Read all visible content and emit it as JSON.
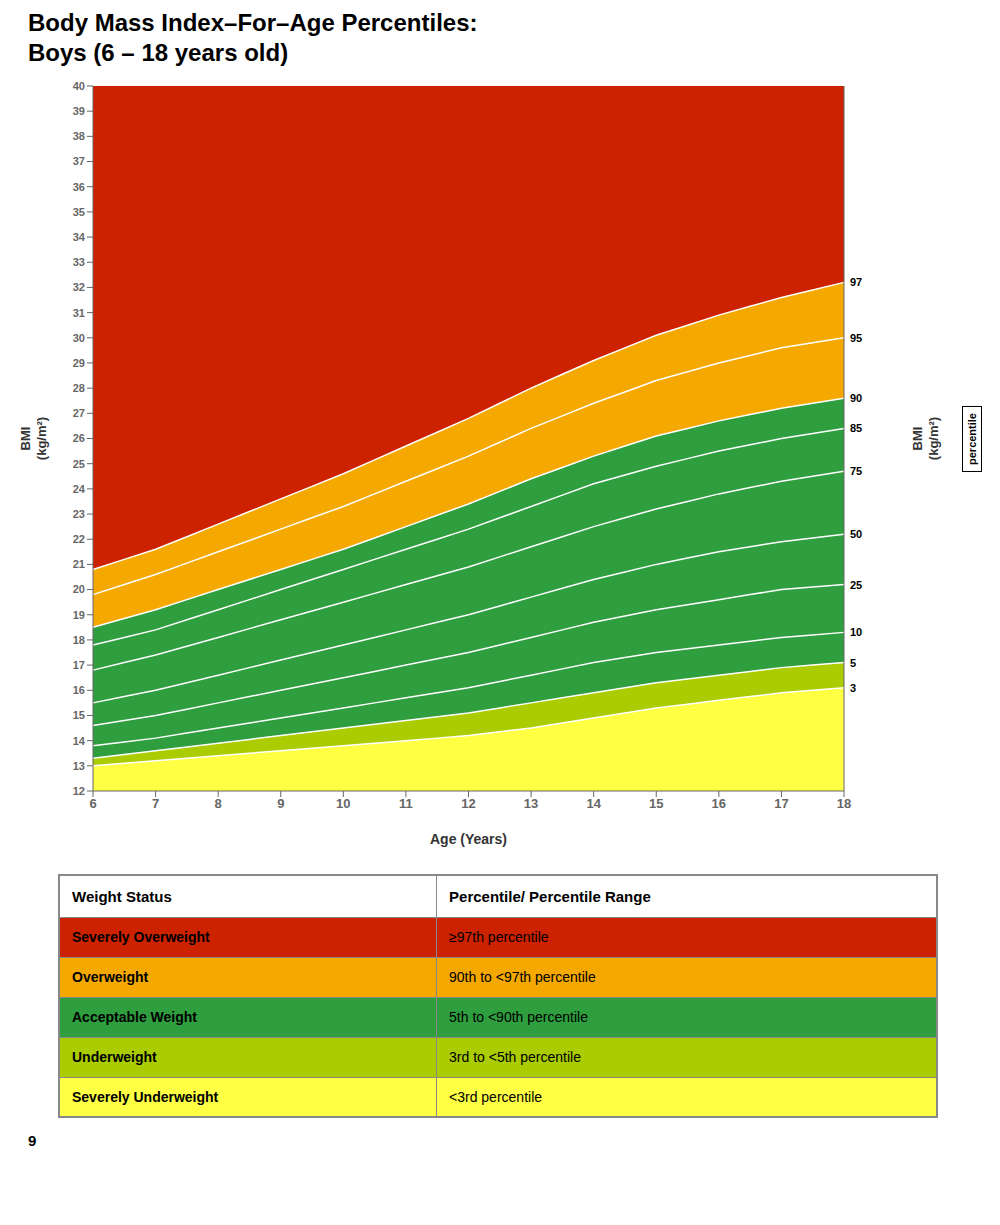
{
  "chart_data": [
    {
      "type": "area",
      "title": "Body Mass Index–For–Age Percentiles:",
      "subtitle": "Boys (6 – 18 years old)",
      "x_label": "Age (Years)",
      "y_label": "BMI\n(kg/m²)",
      "y2_label": "BMI\n(kg/m²)",
      "x": [
        6,
        6.5,
        7,
        7.5,
        8,
        8.5,
        9,
        9.5,
        10,
        10.5,
        11,
        11.5,
        12,
        12.5,
        13,
        13.5,
        14,
        14.5,
        15,
        15.5,
        16,
        16.5,
        17,
        17.5,
        18
      ],
      "series": [
        {
          "name": "3",
          "color": "#FFFFFF",
          "values": [
            13.0,
            13.1,
            13.2,
            13.3,
            13.4,
            13.5,
            13.6,
            13.7,
            13.8,
            13.9,
            14.0,
            14.1,
            14.2,
            14.35,
            14.5,
            14.7,
            14.9,
            15.1,
            15.3,
            15.45,
            15.6,
            15.75,
            15.9,
            16.0,
            16.1
          ]
        },
        {
          "name": "5",
          "color": "#FFFFFF",
          "values": [
            13.3,
            13.45,
            13.6,
            13.75,
            13.9,
            14.05,
            14.2,
            14.35,
            14.5,
            14.65,
            14.8,
            14.95,
            15.1,
            15.3,
            15.5,
            15.7,
            15.9,
            16.1,
            16.3,
            16.45,
            16.6,
            16.75,
            16.9,
            17.0,
            17.1
          ]
        },
        {
          "name": "10",
          "color": "#FFFFFF",
          "values": [
            13.8,
            13.95,
            14.1,
            14.3,
            14.5,
            14.7,
            14.9,
            15.1,
            15.3,
            15.5,
            15.7,
            15.9,
            16.1,
            16.35,
            16.6,
            16.85,
            17.1,
            17.3,
            17.5,
            17.65,
            17.8,
            17.95,
            18.1,
            18.2,
            18.3
          ]
        },
        {
          "name": "25",
          "color": "#FFFFFF",
          "values": [
            14.6,
            14.8,
            15.0,
            15.25,
            15.5,
            15.75,
            16.0,
            16.25,
            16.5,
            16.75,
            17.0,
            17.25,
            17.5,
            17.8,
            18.1,
            18.4,
            18.7,
            18.95,
            19.2,
            19.4,
            19.6,
            19.8,
            20.0,
            20.1,
            20.2
          ]
        },
        {
          "name": "50",
          "color": "#FFFFFF",
          "values": [
            15.5,
            15.75,
            16.0,
            16.3,
            16.6,
            16.9,
            17.2,
            17.5,
            17.8,
            18.1,
            18.4,
            18.7,
            19.0,
            19.35,
            19.7,
            20.05,
            20.4,
            20.7,
            21.0,
            21.25,
            21.5,
            21.7,
            21.9,
            22.05,
            22.2
          ]
        },
        {
          "name": "75",
          "color": "#FFFFFF",
          "values": [
            16.8,
            17.1,
            17.4,
            17.75,
            18.1,
            18.45,
            18.8,
            19.15,
            19.5,
            19.85,
            20.2,
            20.55,
            20.9,
            21.3,
            21.7,
            22.1,
            22.5,
            22.85,
            23.2,
            23.5,
            23.8,
            24.05,
            24.3,
            24.5,
            24.7
          ]
        },
        {
          "name": "85",
          "color": "#FFFFFF",
          "values": [
            17.8,
            18.1,
            18.4,
            18.8,
            19.2,
            19.6,
            20.0,
            20.4,
            20.8,
            21.2,
            21.6,
            22.0,
            22.4,
            22.85,
            23.3,
            23.75,
            24.2,
            24.55,
            24.9,
            25.2,
            25.5,
            25.75,
            26.0,
            26.2,
            26.4
          ]
        },
        {
          "name": "90",
          "color": "#FFFFFF",
          "values": [
            18.5,
            18.85,
            19.2,
            19.6,
            20.0,
            20.4,
            20.8,
            21.2,
            21.6,
            22.05,
            22.5,
            22.95,
            23.4,
            23.9,
            24.4,
            24.85,
            25.3,
            25.7,
            26.1,
            26.4,
            26.7,
            26.95,
            27.2,
            27.4,
            27.6
          ]
        },
        {
          "name": "95",
          "color": "#FFFFFF",
          "values": [
            19.8,
            20.2,
            20.6,
            21.05,
            21.5,
            21.95,
            22.4,
            22.85,
            23.3,
            23.8,
            24.3,
            24.8,
            25.3,
            25.85,
            26.4,
            26.9,
            27.4,
            27.85,
            28.3,
            28.65,
            29.0,
            29.3,
            29.6,
            29.8,
            30.0
          ]
        },
        {
          "name": "97",
          "color": "#FFFFFF",
          "values": [
            20.8,
            21.2,
            21.6,
            22.1,
            22.6,
            23.1,
            23.6,
            24.1,
            24.6,
            25.15,
            25.7,
            26.25,
            26.8,
            27.4,
            28.0,
            28.55,
            29.1,
            29.6,
            30.1,
            30.5,
            30.9,
            31.25,
            31.6,
            31.9,
            32.2
          ]
        }
      ],
      "bands": [
        {
          "from": "97",
          "to": null,
          "color": "#CC2200"
        },
        {
          "from": "90",
          "to": "97",
          "color": "#F5A800"
        },
        {
          "from": "5",
          "to": "90",
          "color": "#2E9E3E"
        },
        {
          "from": "3",
          "to": "5",
          "color": "#AACC00"
        },
        {
          "from": null,
          "to": "3",
          "color": "#FFFF44"
        }
      ],
      "xlim": [
        6,
        18
      ],
      "xticks": [
        6,
        7,
        8,
        9,
        10,
        11,
        12,
        13,
        14,
        15,
        16,
        17,
        18
      ],
      "ylim": [
        12,
        40
      ],
      "yticks": [
        12,
        13,
        14,
        15,
        16,
        17,
        18,
        19,
        20,
        21,
        22,
        23,
        24,
        25,
        26,
        27,
        28,
        29,
        30,
        31,
        32,
        33,
        34,
        35,
        36,
        37,
        38,
        39,
        40
      ],
      "y2lim": [
        12,
        40
      ],
      "y2ticks": [
        12,
        13,
        14,
        15,
        16,
        17,
        18,
        19,
        20,
        21,
        22,
        23,
        24,
        25,
        26,
        27,
        28,
        29,
        30,
        31,
        32,
        33,
        34,
        35,
        36,
        37,
        38,
        39,
        40
      ],
      "annotations": [
        "percentile"
      ]
    },
    {
      "type": "table",
      "columns": [
        "Weight Status",
        "Percentile/ Percentile Range"
      ],
      "rows": [
        [
          "Severely Overweight",
          "≥97th percentile"
        ],
        [
          "Overweight",
          "90th to <97th percentile"
        ],
        [
          "Acceptable Weight",
          "5th to <90th percentile"
        ],
        [
          "Underweight",
          "3rd to <5th percentile"
        ],
        [
          "Severely Underweight",
          "<3rd percentile"
        ]
      ],
      "colors": [
        "#CC2200",
        "#F5A800",
        "#2E9E3E",
        "#AACC00",
        "#FFFF44"
      ],
      "annotations": [
        "9"
      ]
    }
  ]
}
